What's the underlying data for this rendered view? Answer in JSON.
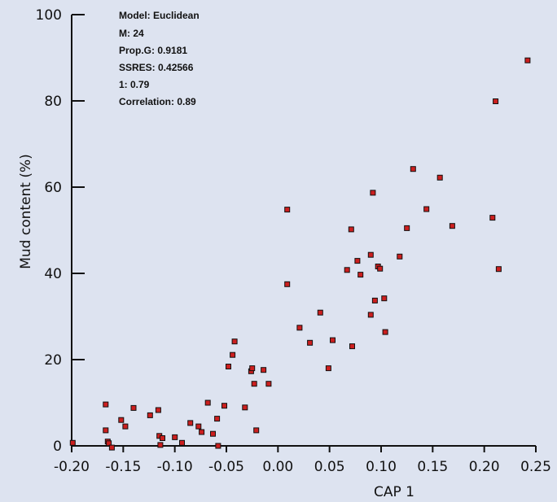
{
  "chart_data": {
    "type": "scatter",
    "xlabel": "CAP 1",
    "ylabel": "Mud content (%)",
    "xlim": [
      -0.2,
      0.25
    ],
    "ylim": [
      0,
      100
    ],
    "x_ticks": [
      "-0.20",
      "-0.15",
      "-0.10",
      "-0.05",
      "0.00",
      "0.05",
      "0.10",
      "0.15",
      "0.20",
      "0.25"
    ],
    "y_ticks": [
      "0",
      "20",
      "40",
      "60",
      "80",
      "100"
    ],
    "grid": false,
    "legend": "none",
    "marker_color": "#cc1f1f",
    "annotations": [
      "Model: Euclidean",
      "M: 24",
      "Prop.G: 0.9181",
      "SSRES: 0.42566",
      "1: 0.79",
      "Correlation: 0.89"
    ],
    "points": [
      [
        -0.199,
        0.7
      ],
      [
        -0.167,
        9.6
      ],
      [
        -0.167,
        3.6
      ],
      [
        -0.165,
        1.0
      ],
      [
        -0.164,
        0.6
      ],
      [
        -0.161,
        -0.4
      ],
      [
        -0.152,
        6.0
      ],
      [
        -0.148,
        4.5
      ],
      [
        -0.14,
        8.8
      ],
      [
        -0.124,
        7.1
      ],
      [
        -0.116,
        8.3
      ],
      [
        -0.115,
        2.3
      ],
      [
        -0.114,
        0.2
      ],
      [
        -0.112,
        1.8
      ],
      [
        -0.1,
        2.0
      ],
      [
        -0.093,
        0.7
      ],
      [
        -0.085,
        5.3
      ],
      [
        -0.077,
        4.5
      ],
      [
        -0.074,
        3.2
      ],
      [
        -0.068,
        10.0
      ],
      [
        -0.063,
        2.8
      ],
      [
        -0.059,
        6.3
      ],
      [
        -0.058,
        0.0
      ],
      [
        -0.052,
        9.3
      ],
      [
        -0.048,
        18.4
      ],
      [
        -0.044,
        21.1
      ],
      [
        -0.042,
        24.2
      ],
      [
        -0.032,
        8.9
      ],
      [
        -0.026,
        17.3
      ],
      [
        -0.025,
        18.0
      ],
      [
        -0.023,
        14.4
      ],
      [
        -0.021,
        3.6
      ],
      [
        -0.014,
        17.6
      ],
      [
        -0.009,
        14.4
      ],
      [
        0.009,
        37.5
      ],
      [
        0.009,
        54.8
      ],
      [
        0.021,
        27.4
      ],
      [
        0.031,
        23.9
      ],
      [
        0.041,
        30.9
      ],
      [
        0.049,
        18.0
      ],
      [
        0.053,
        24.5
      ],
      [
        0.067,
        40.8
      ],
      [
        0.071,
        50.2
      ],
      [
        0.072,
        23.1
      ],
      [
        0.077,
        42.9
      ],
      [
        0.08,
        39.7
      ],
      [
        0.09,
        44.3
      ],
      [
        0.09,
        30.4
      ],
      [
        0.092,
        58.7
      ],
      [
        0.094,
        33.7
      ],
      [
        0.097,
        41.6
      ],
      [
        0.099,
        41.1
      ],
      [
        0.103,
        34.2
      ],
      [
        0.104,
        26.4
      ],
      [
        0.118,
        43.9
      ],
      [
        0.125,
        50.5
      ],
      [
        0.131,
        64.2
      ],
      [
        0.144,
        54.9
      ],
      [
        0.157,
        62.2
      ],
      [
        0.169,
        51.0
      ],
      [
        0.208,
        52.9
      ],
      [
        0.211,
        79.9
      ],
      [
        0.214,
        41.0
      ],
      [
        0.242,
        89.4
      ]
    ]
  }
}
